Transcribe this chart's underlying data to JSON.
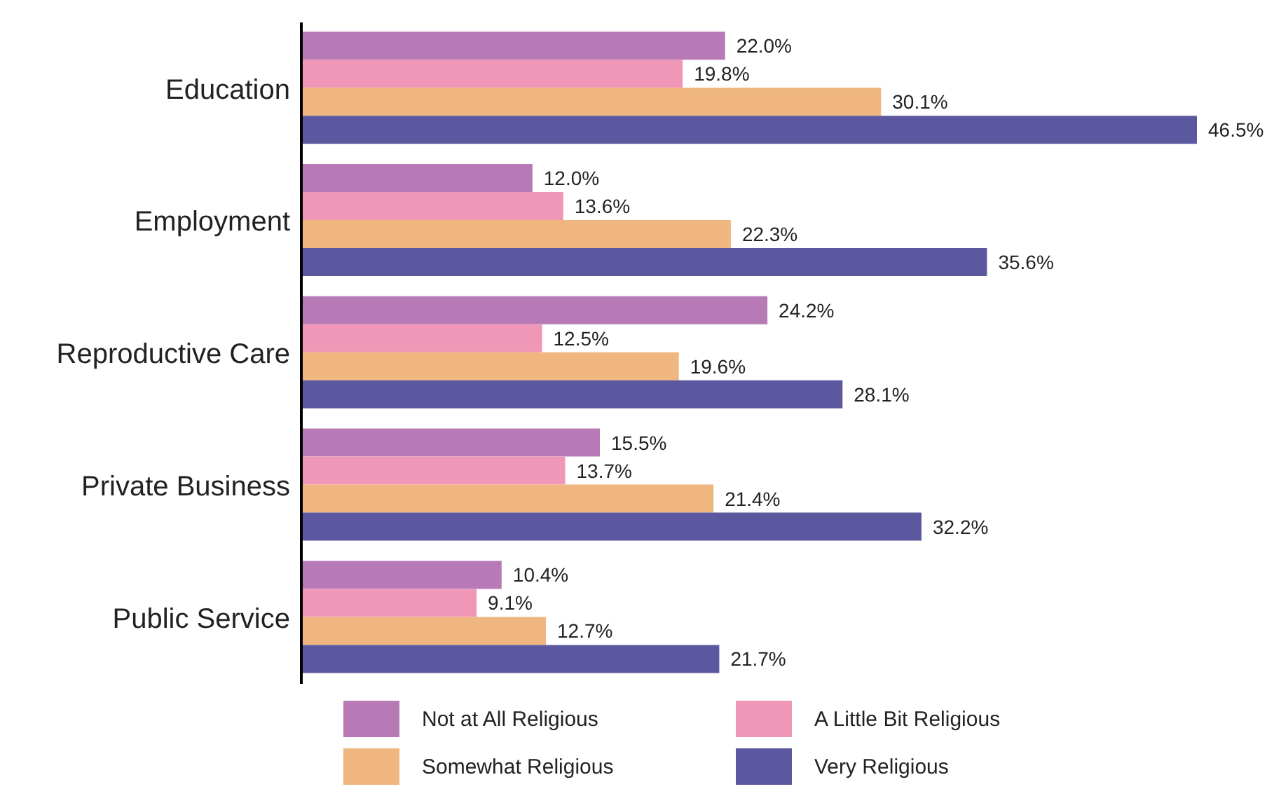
{
  "chart_data": {
    "type": "bar",
    "orientation": "horizontal",
    "categories": [
      "Education",
      "Employment",
      "Reproductive Care",
      "Private Business",
      "Public Service"
    ],
    "series": [
      {
        "name": "Not at All Religious",
        "color": "#b77ab7",
        "values": [
          22.0,
          12.0,
          24.2,
          15.5,
          10.4
        ],
        "value_labels": [
          "22.0%",
          "12.0%",
          "24.2%",
          "15.5%",
          "10.4%"
        ]
      },
      {
        "name": "A Little Bit Religious",
        "color": "#f097b8",
        "values": [
          19.8,
          13.6,
          12.5,
          13.7,
          9.1
        ],
        "value_labels": [
          "19.8%",
          "13.6%",
          "12.5%",
          "13.7%",
          "9.1%"
        ]
      },
      {
        "name": "Somewhat Religious",
        "color": "#efb680",
        "values": [
          30.1,
          22.3,
          19.6,
          21.4,
          12.7
        ],
        "value_labels": [
          "30.1%",
          "22.3%",
          "19.6%",
          "21.4%",
          "12.7%"
        ]
      },
      {
        "name": "Very Religious",
        "color": "#5b58a0",
        "values": [
          46.5,
          35.6,
          28.1,
          32.2,
          21.7
        ],
        "value_labels": [
          "46.5%",
          "35.6%",
          "28.1%",
          "32.2%",
          "21.7%"
        ]
      }
    ],
    "legend": "bottom",
    "grid": false
  }
}
